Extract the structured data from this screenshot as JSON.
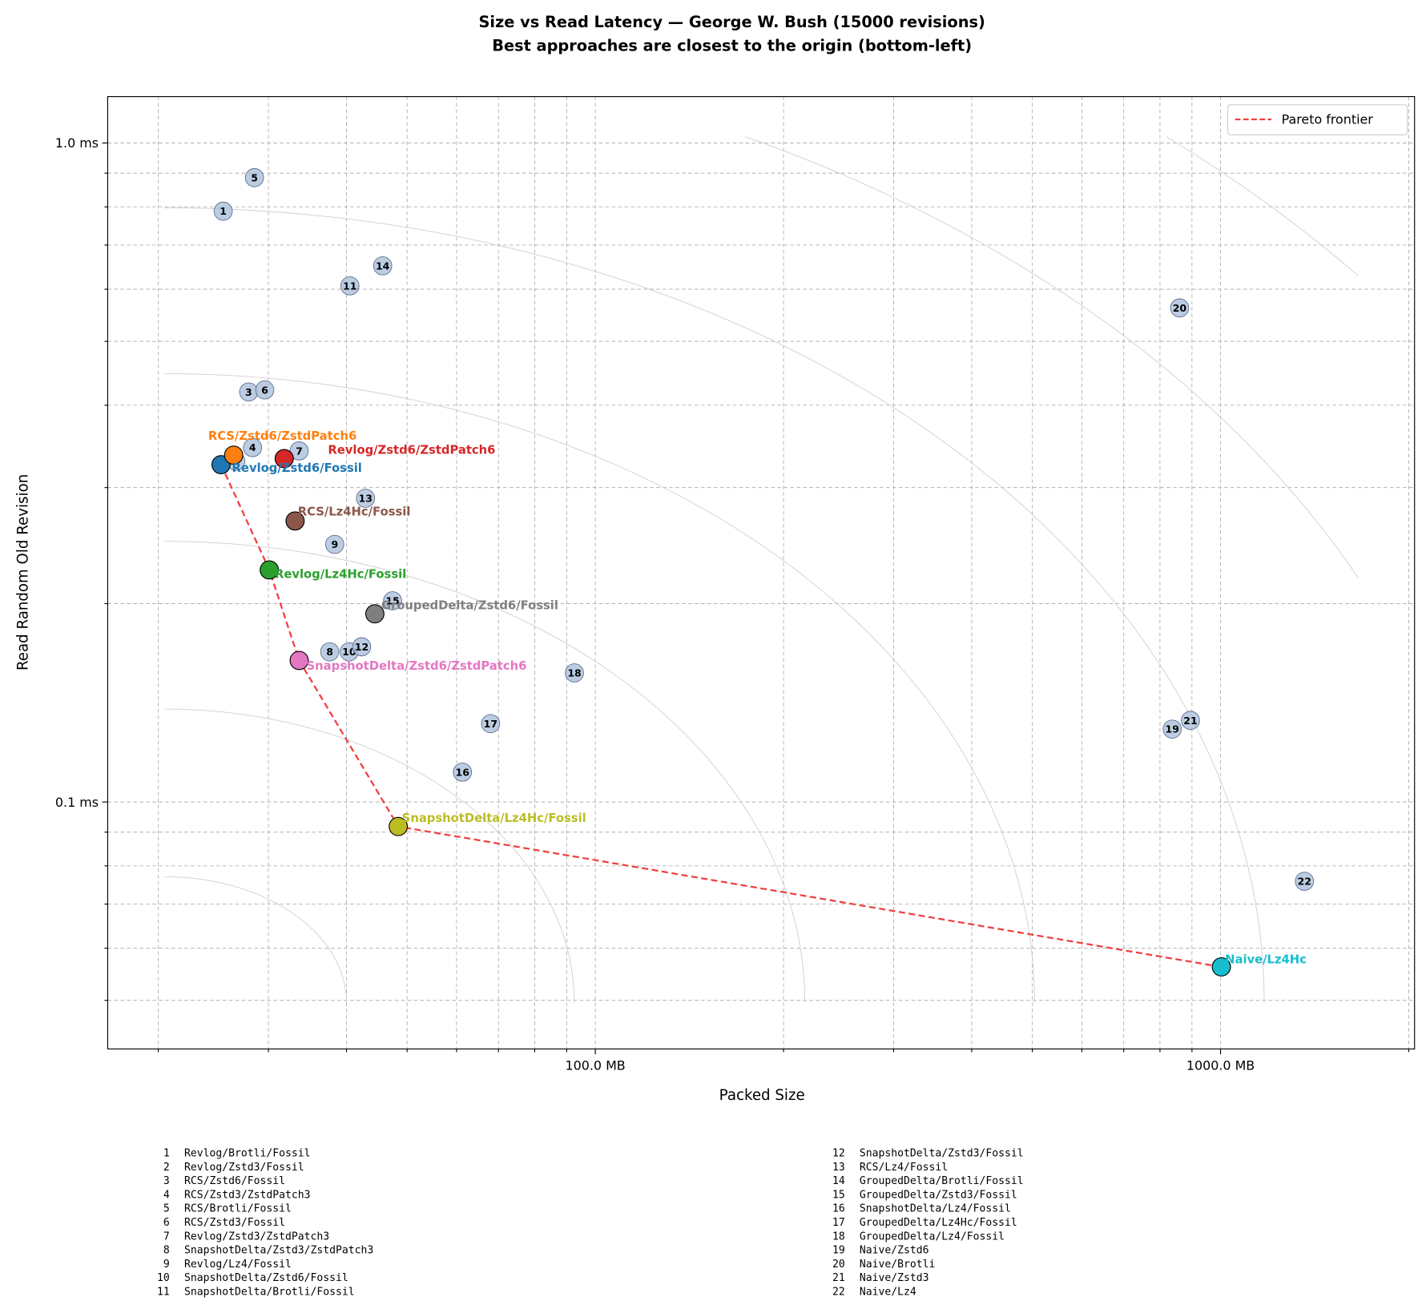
{
  "chart_data": {
    "type": "scatter",
    "title": "Size vs Read Latency — George W. Bush (15000 revisions)",
    "subtitle": "Best approaches are closest to the origin (bottom-left)",
    "x_label": "Packed Size",
    "y_label": "Read Random Old Revision",
    "log_x": true,
    "log_y": true,
    "grid": true,
    "legend_position": "upper right",
    "xlim": [
      16.6,
      2043
    ],
    "ylim": [
      0.0422,
      1.176
    ],
    "xticks": [
      {
        "value": 100,
        "label": "100.0 MB"
      },
      {
        "value": 1000,
        "label": "1000.0 MB"
      }
    ],
    "xminor": [
      20,
      30,
      40,
      50,
      60,
      70,
      80,
      90,
      200,
      300,
      400,
      500,
      600,
      700,
      800,
      900,
      2000
    ],
    "yticks": [
      {
        "value": 0.1,
        "label": "0.1 ms"
      },
      {
        "value": 1.0,
        "label": "1.0 ms"
      }
    ],
    "yminor": [
      0.05,
      0.06,
      0.07,
      0.08,
      0.09,
      0.2,
      0.3,
      0.4,
      0.5,
      0.6,
      0.7,
      0.8,
      0.9
    ],
    "numbered": {
      "color": "#b0c4de",
      "labels": [
        "1",
        "2",
        "3",
        "4",
        "5",
        "6",
        "7",
        "8",
        "9",
        "10",
        "11",
        "12",
        "13",
        "14",
        "15",
        "16",
        "17",
        "18",
        "19",
        "20",
        "21",
        "22"
      ],
      "names": [
        "Revlog/Brotli/Fossil",
        "Revlog/Zstd3/Fossil",
        "RCS/Zstd6/Fossil",
        "RCS/Zstd3/ZstdPatch3",
        "RCS/Brotli/Fossil",
        "RCS/Zstd3/Fossil",
        "Revlog/Zstd3/ZstdPatch3",
        "SnapshotDelta/Zstd3/ZstdPatch3",
        "Revlog/Lz4/Fossil",
        "SnapshotDelta/Zstd6/Fossil",
        "SnapshotDelta/Brotli/Fossil",
        "SnapshotDelta/Zstd3/Fossil",
        "RCS/Lz4/Fossil",
        "GroupedDelta/Brotli/Fossil",
        "GroupedDelta/Zstd3/Fossil",
        "SnapshotDelta/Lz4/Fossil",
        "GroupedDelta/Lz4Hc/Fossil",
        "GroupedDelta/Lz4/Fossil",
        "Naive/Zstd6",
        "Naive/Brotli",
        "Naive/Zstd3",
        "Naive/Lz4"
      ],
      "x": [
        25.4,
        26.6,
        27.9,
        28.3,
        28.5,
        29.6,
        33.6,
        37.6,
        38.3,
        40.4,
        40.5,
        42.3,
        42.9,
        45.7,
        47.4,
        61.3,
        68.0,
        92.6,
        837,
        860,
        895,
        1362
      ],
      "values": [
        0.788,
        0.329,
        0.419,
        0.345,
        0.886,
        0.422,
        0.341,
        0.169,
        0.246,
        0.169,
        0.607,
        0.172,
        0.289,
        0.651,
        0.202,
        0.111,
        0.1315,
        0.157,
        0.129,
        0.562,
        0.133,
        0.0758
      ]
    },
    "highlighted": {
      "names": [
        "Revlog/Zstd6/Fossil",
        "RCS/Zstd6/ZstdPatch6",
        "Revlog/Zstd6/ZstdPatch6",
        "RCS/Lz4Hc/Fossil",
        "Revlog/Lz4Hc/Fossil",
        "GroupedDelta/Zstd6/Fossil",
        "SnapshotDelta/Zstd6/ZstdPatch6",
        "SnapshotDelta/Lz4Hc/Fossil",
        "Naive/Lz4Hc"
      ],
      "colors": [
        "#1f77b4",
        "#ff7f0e",
        "#d62728",
        "#8c564b",
        "#2ca02c",
        "#7f7f7f",
        "#e377c2",
        "#bcbd22",
        "#17becf"
      ],
      "x": [
        25.2,
        26.4,
        31.8,
        33.1,
        30.1,
        44.4,
        33.6,
        48.4,
        1003
      ],
      "values": [
        0.325,
        0.336,
        0.332,
        0.267,
        0.225,
        0.193,
        0.164,
        0.0918,
        0.0562
      ]
    },
    "pareto": {
      "name": "Pareto frontier",
      "color": "#f04040",
      "x": [
        25.2,
        30.1,
        33.6,
        48.4,
        1003
      ],
      "values": [
        0.325,
        0.225,
        0.164,
        0.0918,
        0.0562
      ]
    }
  }
}
